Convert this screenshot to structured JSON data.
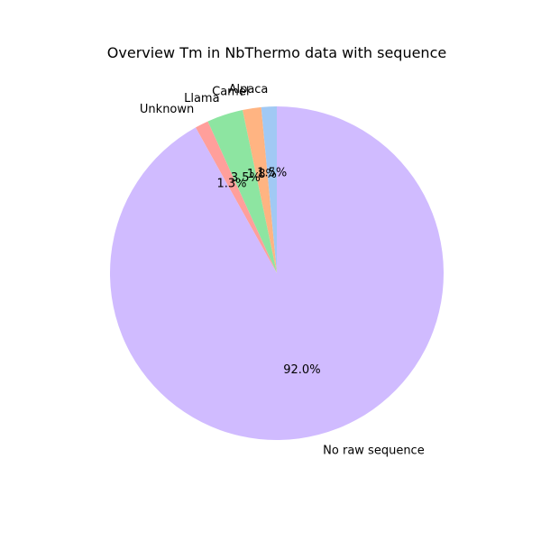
{
  "chart_data": {
    "type": "pie",
    "title": "Overview Tm in NbThermo data with sequence",
    "start_angle_deg": 90,
    "direction": "counterclockwise",
    "slices": [
      {
        "label": "Alpaca",
        "value": 1.5,
        "pct_label": "1.5%",
        "color": "#a1c9f4"
      },
      {
        "label": "Camel",
        "value": 1.8,
        "pct_label": "1.8%",
        "color": "#ffb482"
      },
      {
        "label": "Llama",
        "value": 3.5,
        "pct_label": "3.5%",
        "color": "#8de5a1"
      },
      {
        "label": "Unknown",
        "value": 1.3,
        "pct_label": "1.3%",
        "color": "#ff9f9b"
      },
      {
        "label": "No raw sequence",
        "value": 92.0,
        "pct_label": "92.0%",
        "color": "#d0bbff"
      }
    ]
  }
}
